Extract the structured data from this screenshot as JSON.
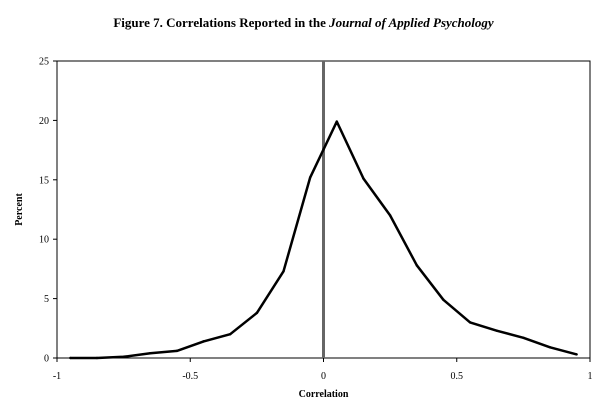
{
  "chart_data": {
    "type": "line",
    "title": {
      "prefix": "Figure 7. Correlations Reported in the ",
      "italic": "Journal of Applied Psychology"
    },
    "xlabel": "Correlation",
    "ylabel": "Percent",
    "xlim": [
      -1,
      1
    ],
    "ylim": [
      0,
      25
    ],
    "x_ticks": [
      -1,
      -0.5,
      0,
      0.5,
      1
    ],
    "x_tick_labels": [
      "-1",
      "-0.5",
      "0",
      "0.5",
      "1"
    ],
    "y_ticks": [
      0,
      5,
      10,
      15,
      20,
      25
    ],
    "y_tick_labels": [
      "0",
      "5",
      "10",
      "15",
      "20",
      "25"
    ],
    "grid": false,
    "legend": "none",
    "reference_line_x": 0,
    "reference_line_color": "#666666",
    "line_color": "#000000",
    "series": [
      {
        "x": [
          -0.95,
          -0.85,
          -0.75,
          -0.65,
          -0.55,
          -0.45,
          -0.35,
          -0.25,
          -0.15,
          -0.05,
          0.05,
          0.15,
          0.25,
          0.35,
          0.45,
          0.55,
          0.65,
          0.75,
          0.85,
          0.95
        ],
        "values": [
          0,
          0,
          0.1,
          0.4,
          0.6,
          1.4,
          2.0,
          3.8,
          7.3,
          15.2,
          19.9,
          15.1,
          12.0,
          7.8,
          4.9,
          3.0,
          2.3,
          1.7,
          0.9,
          0.3
        ]
      }
    ]
  }
}
